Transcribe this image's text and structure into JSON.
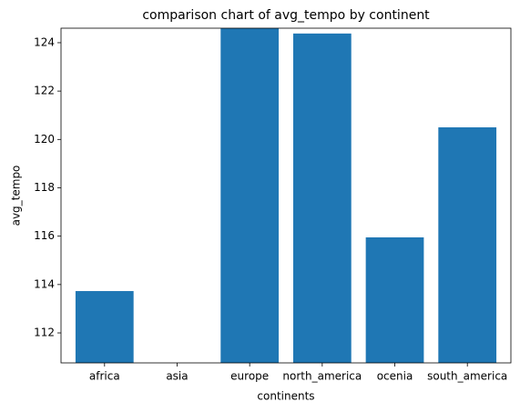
{
  "chart_data": {
    "type": "bar",
    "title": "comparison chart of avg_tempo by continent",
    "xlabel": "continents",
    "ylabel": "avg_tempo",
    "categories": [
      "africa",
      "asia",
      "europe",
      "north_america",
      "ocenia",
      "south_america"
    ],
    "values": [
      113.73,
      null,
      124.6,
      124.38,
      115.95,
      120.5
    ],
    "color": "#1f77b4",
    "ylim": [
      110.76,
      124.6
    ],
    "yticks": [
      112,
      114,
      116,
      118,
      120,
      122,
      124
    ],
    "grid": false
  }
}
